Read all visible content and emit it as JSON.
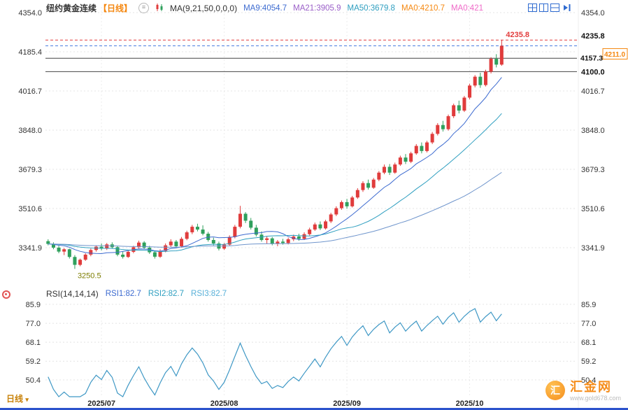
{
  "header": {
    "title": "纽约黄金连续",
    "period_tag": "【日线】",
    "settings_glyph": "≡",
    "ma_label": "MA(9,21,50,0,0,0)",
    "ma_items": [
      {
        "label": "MA9:4054.7",
        "color": "#3d6bd0"
      },
      {
        "label": "MA21:3905.9",
        "color": "#9a5fc8"
      },
      {
        "label": "MA50:3679.8",
        "color": "#2f9fc0"
      },
      {
        "label": "MA0:4210.7",
        "color": "#f5870f"
      },
      {
        "label": "MA0:421",
        "color": "#ef6ac8"
      }
    ]
  },
  "toolbar": {
    "icons": [
      "layout-grid",
      "layout-vertical-split",
      "layout-horizontal-split",
      "collapse-right"
    ],
    "icon_color": "#2f6bd0"
  },
  "rsi_header": {
    "label": "RSI(14,14,14)",
    "items": [
      {
        "label": "RSI1:82.7",
        "color": "#3d6bd0"
      },
      {
        "label": "RSI2:82.7",
        "color": "#2f9fc0"
      },
      {
        "label": "RSI3:82.7",
        "color": "#58b0d8"
      }
    ]
  },
  "bottom": {
    "period_selector": "日线",
    "caret": "▾"
  },
  "watermark": {
    "logo_char": "汇",
    "brand": "汇金网",
    "url": "www.gold678.com"
  },
  "chart_data": {
    "type": "candlestick",
    "title": "纽约黄金连续【日线】",
    "price_gridlines": [
      4354.0,
      4185.4,
      4016.7,
      3848.0,
      3679.3,
      3510.6,
      3341.9
    ],
    "x_ticks": [
      {
        "i": 10,
        "label": "2025/07"
      },
      {
        "i": 33,
        "label": "2025/08"
      },
      {
        "i": 56,
        "label": "2025/09"
      },
      {
        "i": 79,
        "label": "2025/10"
      }
    ],
    "levels": {
      "session_high": 4235.8,
      "last_price": 4211.0,
      "support1": 4157.3,
      "support2": 4100.0,
      "session_low": 3250.5
    },
    "ma_periods": [
      9,
      21,
      50
    ],
    "ma_colors": [
      "#3d6bd0",
      "#2f9fc0",
      "#6f95cc"
    ],
    "up_color": "#e03c3c",
    "down_color": "#2fa05c",
    "candles": [
      [
        3370,
        3378,
        3352,
        3358
      ],
      [
        3358,
        3365,
        3335,
        3342
      ],
      [
        3342,
        3350,
        3318,
        3325
      ],
      [
        3325,
        3340,
        3310,
        3335
      ],
      [
        3335,
        3338,
        3295,
        3302
      ],
      [
        3302,
        3310,
        3250.5,
        3268
      ],
      [
        3268,
        3295,
        3262,
        3290
      ],
      [
        3290,
        3318,
        3285,
        3312
      ],
      [
        3312,
        3338,
        3305,
        3332
      ],
      [
        3332,
        3352,
        3325,
        3346
      ],
      [
        3346,
        3360,
        3330,
        3338
      ],
      [
        3338,
        3362,
        3332,
        3356
      ],
      [
        3356,
        3365,
        3338,
        3344
      ],
      [
        3344,
        3350,
        3305,
        3312
      ],
      [
        3312,
        3325,
        3295,
        3302
      ],
      [
        3302,
        3330,
        3298,
        3324
      ],
      [
        3324,
        3350,
        3318,
        3344
      ],
      [
        3344,
        3372,
        3338,
        3364
      ],
      [
        3364,
        3370,
        3335,
        3342
      ],
      [
        3342,
        3350,
        3315,
        3322
      ],
      [
        3322,
        3330,
        3295,
        3303
      ],
      [
        3303,
        3335,
        3298,
        3328
      ],
      [
        3328,
        3360,
        3322,
        3352
      ],
      [
        3352,
        3378,
        3345,
        3368
      ],
      [
        3368,
        3375,
        3340,
        3348
      ],
      [
        3348,
        3388,
        3342,
        3380
      ],
      [
        3380,
        3415,
        3374,
        3408
      ],
      [
        3408,
        3440,
        3400,
        3432
      ],
      [
        3432,
        3445,
        3412,
        3420
      ],
      [
        3420,
        3438,
        3395,
        3402
      ],
      [
        3402,
        3410,
        3368,
        3375
      ],
      [
        3375,
        3385,
        3352,
        3360
      ],
      [
        3360,
        3368,
        3330,
        3338
      ],
      [
        3338,
        3362,
        3332,
        3355
      ],
      [
        3355,
        3395,
        3350,
        3388
      ],
      [
        3388,
        3440,
        3382,
        3432
      ],
      [
        3432,
        3522,
        3425,
        3488
      ],
      [
        3488,
        3495,
        3448,
        3458
      ],
      [
        3458,
        3470,
        3420,
        3428
      ],
      [
        3428,
        3440,
        3390,
        3398
      ],
      [
        3398,
        3412,
        3368,
        3375
      ],
      [
        3375,
        3390,
        3358,
        3382
      ],
      [
        3382,
        3388,
        3352,
        3360
      ],
      [
        3360,
        3375,
        3348,
        3368
      ],
      [
        3368,
        3380,
        3355,
        3362
      ],
      [
        3362,
        3385,
        3356,
        3378
      ],
      [
        3378,
        3398,
        3370,
        3390
      ],
      [
        3390,
        3402,
        3372,
        3380
      ],
      [
        3380,
        3408,
        3375,
        3400
      ],
      [
        3400,
        3428,
        3394,
        3420
      ],
      [
        3420,
        3450,
        3414,
        3442
      ],
      [
        3442,
        3455,
        3418,
        3425
      ],
      [
        3425,
        3462,
        3420,
        3455
      ],
      [
        3455,
        3492,
        3448,
        3485
      ],
      [
        3485,
        3520,
        3478,
        3512
      ],
      [
        3512,
        3545,
        3505,
        3538
      ],
      [
        3538,
        3552,
        3510,
        3520
      ],
      [
        3520,
        3565,
        3515,
        3558
      ],
      [
        3558,
        3598,
        3552,
        3590
      ],
      [
        3590,
        3628,
        3582,
        3620
      ],
      [
        3620,
        3635,
        3592,
        3600
      ],
      [
        3600,
        3642,
        3595,
        3635
      ],
      [
        3635,
        3672,
        3628,
        3665
      ],
      [
        3665,
        3700,
        3658,
        3690
      ],
      [
        3690,
        3702,
        3655,
        3665
      ],
      [
        3665,
        3708,
        3660,
        3700
      ],
      [
        3700,
        3738,
        3694,
        3730
      ],
      [
        3730,
        3745,
        3702,
        3712
      ],
      [
        3712,
        3755,
        3706,
        3748
      ],
      [
        3748,
        3788,
        3742,
        3780
      ],
      [
        3780,
        3795,
        3748,
        3758
      ],
      [
        3758,
        3802,
        3752,
        3795
      ],
      [
        3795,
        3840,
        3788,
        3832
      ],
      [
        3832,
        3878,
        3825,
        3870
      ],
      [
        3870,
        3888,
        3842,
        3852
      ],
      [
        3852,
        3915,
        3846,
        3908
      ],
      [
        3908,
        3962,
        3900,
        3955
      ],
      [
        3955,
        3975,
        3920,
        3932
      ],
      [
        3932,
        3995,
        3926,
        3988
      ],
      [
        3988,
        4048,
        3980,
        4040
      ],
      [
        4040,
        4085,
        4032,
        4078
      ],
      [
        4078,
        4095,
        4030,
        4042
      ],
      [
        4042,
        4108,
        4036,
        4100
      ],
      [
        4100,
        4162,
        4092,
        4155
      ],
      [
        4155,
        4175,
        4118,
        4130
      ],
      [
        4130,
        4235.8,
        4125,
        4211
      ]
    ],
    "rsi": {
      "periods": [
        14,
        14,
        14
      ],
      "axis": [
        85.9,
        77.0,
        68.1,
        59.2,
        50.4
      ],
      "last": 82.7,
      "color": "#3f98c5"
    }
  }
}
